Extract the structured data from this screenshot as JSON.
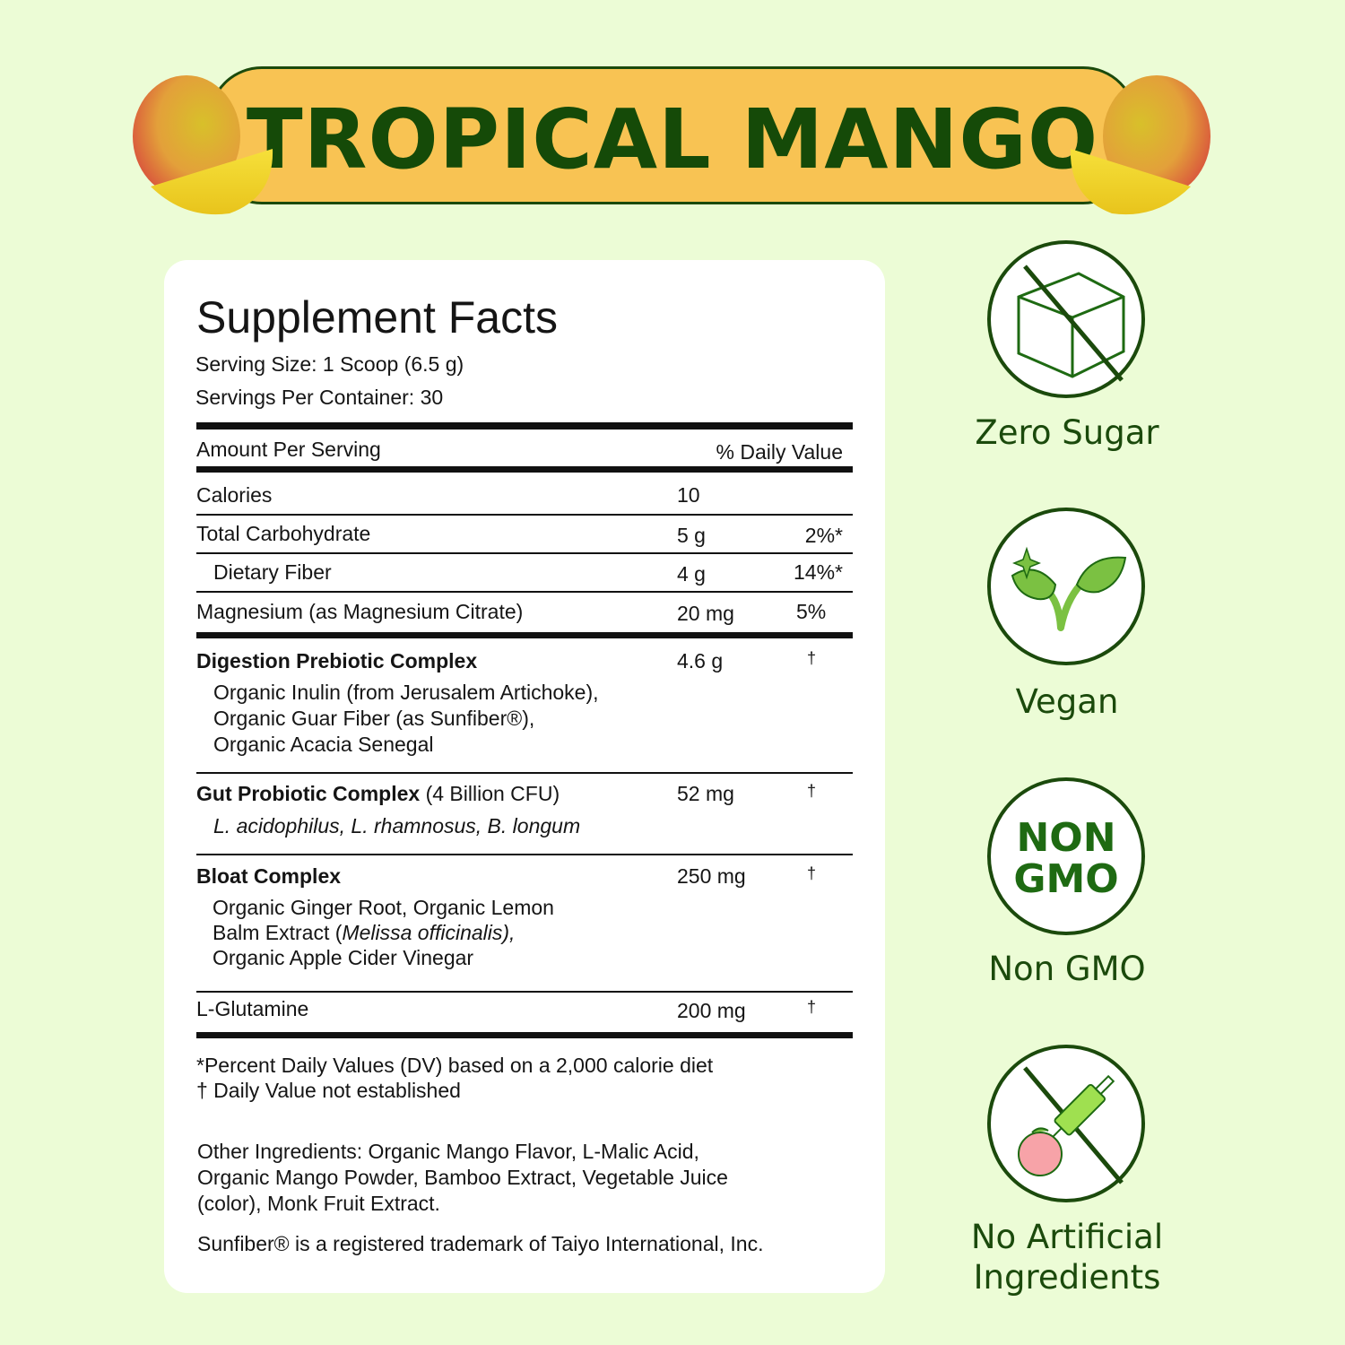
{
  "banner": {
    "title": "TROPICAL MANGO",
    "color": "#f8c353",
    "text_color": "#154a08"
  },
  "facts": {
    "title": "Supplement Facts",
    "serving_size_label": "Serving Size:",
    "serving_size": "1 Scoop (6.5 g)",
    "servings_label": "Servings Per Container:",
    "servings": "30",
    "amount_header": "Amount Per Serving",
    "dv_header": "% Daily Value",
    "rows": [
      {
        "name": "Calories",
        "amount": "10",
        "dv": ""
      },
      {
        "name": "Total Carbohydrate",
        "amount": "5 g",
        "dv": "2%*"
      },
      {
        "name": "Dietary Fiber",
        "amount": "4 g",
        "dv": "14%*"
      },
      {
        "name": "Magnesium (as Magnesium Citrate)",
        "amount": "20 mg",
        "dv": "5%"
      }
    ],
    "complexes": [
      {
        "name": "Digestion Prebiotic Complex",
        "extra": "",
        "amount": "4.6 g",
        "dv": "†",
        "lines": [
          "Organic Inulin (from Jerusalem Artichoke),",
          "Organic Guar Fiber (as Sunfiber®),",
          "Organic Acacia Senegal"
        ]
      },
      {
        "name": "Gut Probiotic Complex",
        "extra": "(4 Billion CFU)",
        "amount": "52 mg",
        "dv": "†",
        "lines": [
          "L. acidophilus, L. rhamnosus, B. longum"
        ]
      },
      {
        "name": "Bloat Complex",
        "extra": "",
        "amount": "250 mg",
        "dv": "†",
        "lines": [
          "Organic Ginger Root, Organic Lemon",
          "Balm Extract (",
          "Melissa officinalis),",
          "Organic Apple Cider Vinegar"
        ]
      },
      {
        "name": "L-Glutamine",
        "extra": "",
        "amount": "200 mg",
        "dv": "†",
        "lines": []
      }
    ],
    "footnote_1": "*Percent Daily Values (DV) based on a 2,000 calorie diet",
    "footnote_2": "† Daily Value not established",
    "other_ingredients": [
      "Other Ingredients:  Organic Mango Flavor, L-Malic Acid,",
      "Organic Mango Powder, Bamboo Extract, Vegetable Juice",
      "(color), Monk Fruit Extract."
    ],
    "trademark": "Sunfiber® is a registered trademark of Taiyo International, Inc."
  },
  "badges": [
    {
      "icon": "no-sugar-cube-icon",
      "label": "Zero Sugar"
    },
    {
      "icon": "plant-sprout-icon",
      "label": "Vegan"
    },
    {
      "icon": "non-gmo-icon",
      "text_1": "NON",
      "text_2": "GMO",
      "label": "Non GMO"
    },
    {
      "icon": "no-artificial-syringe-icon",
      "label_1": "No Artificial",
      "label_2": "Ingredients"
    }
  ],
  "colors": {
    "background": "#ecfcd6",
    "dark_green": "#1b4a0c",
    "accent_green": "#7bc142"
  }
}
